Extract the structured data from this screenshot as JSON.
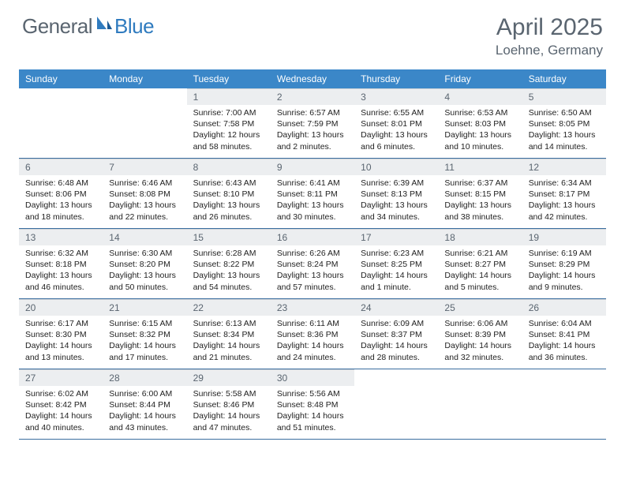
{
  "logo": {
    "general": "General",
    "blue": "Blue"
  },
  "title": "April 2025",
  "location": "Loehne, Germany",
  "colors": {
    "header_bg": "#3b87c8",
    "header_text": "#ffffff",
    "daynum_bg": "#eceef0",
    "daynum_text": "#5a6570",
    "body_text": "#222222",
    "title_text": "#5a6570",
    "week_border": "#3b6ea0",
    "logo_gray": "#5a6570",
    "logo_blue": "#2f7bbf"
  },
  "weekdays": [
    "Sunday",
    "Monday",
    "Tuesday",
    "Wednesday",
    "Thursday",
    "Friday",
    "Saturday"
  ],
  "weeks": [
    [
      {
        "empty": true
      },
      {
        "empty": true
      },
      {
        "num": "1",
        "sunrise": "Sunrise: 7:00 AM",
        "sunset": "Sunset: 7:58 PM",
        "daylight": "Daylight: 12 hours and 58 minutes."
      },
      {
        "num": "2",
        "sunrise": "Sunrise: 6:57 AM",
        "sunset": "Sunset: 7:59 PM",
        "daylight": "Daylight: 13 hours and 2 minutes."
      },
      {
        "num": "3",
        "sunrise": "Sunrise: 6:55 AM",
        "sunset": "Sunset: 8:01 PM",
        "daylight": "Daylight: 13 hours and 6 minutes."
      },
      {
        "num": "4",
        "sunrise": "Sunrise: 6:53 AM",
        "sunset": "Sunset: 8:03 PM",
        "daylight": "Daylight: 13 hours and 10 minutes."
      },
      {
        "num": "5",
        "sunrise": "Sunrise: 6:50 AM",
        "sunset": "Sunset: 8:05 PM",
        "daylight": "Daylight: 13 hours and 14 minutes."
      }
    ],
    [
      {
        "num": "6",
        "sunrise": "Sunrise: 6:48 AM",
        "sunset": "Sunset: 8:06 PM",
        "daylight": "Daylight: 13 hours and 18 minutes."
      },
      {
        "num": "7",
        "sunrise": "Sunrise: 6:46 AM",
        "sunset": "Sunset: 8:08 PM",
        "daylight": "Daylight: 13 hours and 22 minutes."
      },
      {
        "num": "8",
        "sunrise": "Sunrise: 6:43 AM",
        "sunset": "Sunset: 8:10 PM",
        "daylight": "Daylight: 13 hours and 26 minutes."
      },
      {
        "num": "9",
        "sunrise": "Sunrise: 6:41 AM",
        "sunset": "Sunset: 8:11 PM",
        "daylight": "Daylight: 13 hours and 30 minutes."
      },
      {
        "num": "10",
        "sunrise": "Sunrise: 6:39 AM",
        "sunset": "Sunset: 8:13 PM",
        "daylight": "Daylight: 13 hours and 34 minutes."
      },
      {
        "num": "11",
        "sunrise": "Sunrise: 6:37 AM",
        "sunset": "Sunset: 8:15 PM",
        "daylight": "Daylight: 13 hours and 38 minutes."
      },
      {
        "num": "12",
        "sunrise": "Sunrise: 6:34 AM",
        "sunset": "Sunset: 8:17 PM",
        "daylight": "Daylight: 13 hours and 42 minutes."
      }
    ],
    [
      {
        "num": "13",
        "sunrise": "Sunrise: 6:32 AM",
        "sunset": "Sunset: 8:18 PM",
        "daylight": "Daylight: 13 hours and 46 minutes."
      },
      {
        "num": "14",
        "sunrise": "Sunrise: 6:30 AM",
        "sunset": "Sunset: 8:20 PM",
        "daylight": "Daylight: 13 hours and 50 minutes."
      },
      {
        "num": "15",
        "sunrise": "Sunrise: 6:28 AM",
        "sunset": "Sunset: 8:22 PM",
        "daylight": "Daylight: 13 hours and 54 minutes."
      },
      {
        "num": "16",
        "sunrise": "Sunrise: 6:26 AM",
        "sunset": "Sunset: 8:24 PM",
        "daylight": "Daylight: 13 hours and 57 minutes."
      },
      {
        "num": "17",
        "sunrise": "Sunrise: 6:23 AM",
        "sunset": "Sunset: 8:25 PM",
        "daylight": "Daylight: 14 hours and 1 minute."
      },
      {
        "num": "18",
        "sunrise": "Sunrise: 6:21 AM",
        "sunset": "Sunset: 8:27 PM",
        "daylight": "Daylight: 14 hours and 5 minutes."
      },
      {
        "num": "19",
        "sunrise": "Sunrise: 6:19 AM",
        "sunset": "Sunset: 8:29 PM",
        "daylight": "Daylight: 14 hours and 9 minutes."
      }
    ],
    [
      {
        "num": "20",
        "sunrise": "Sunrise: 6:17 AM",
        "sunset": "Sunset: 8:30 PM",
        "daylight": "Daylight: 14 hours and 13 minutes."
      },
      {
        "num": "21",
        "sunrise": "Sunrise: 6:15 AM",
        "sunset": "Sunset: 8:32 PM",
        "daylight": "Daylight: 14 hours and 17 minutes."
      },
      {
        "num": "22",
        "sunrise": "Sunrise: 6:13 AM",
        "sunset": "Sunset: 8:34 PM",
        "daylight": "Daylight: 14 hours and 21 minutes."
      },
      {
        "num": "23",
        "sunrise": "Sunrise: 6:11 AM",
        "sunset": "Sunset: 8:36 PM",
        "daylight": "Daylight: 14 hours and 24 minutes."
      },
      {
        "num": "24",
        "sunrise": "Sunrise: 6:09 AM",
        "sunset": "Sunset: 8:37 PM",
        "daylight": "Daylight: 14 hours and 28 minutes."
      },
      {
        "num": "25",
        "sunrise": "Sunrise: 6:06 AM",
        "sunset": "Sunset: 8:39 PM",
        "daylight": "Daylight: 14 hours and 32 minutes."
      },
      {
        "num": "26",
        "sunrise": "Sunrise: 6:04 AM",
        "sunset": "Sunset: 8:41 PM",
        "daylight": "Daylight: 14 hours and 36 minutes."
      }
    ],
    [
      {
        "num": "27",
        "sunrise": "Sunrise: 6:02 AM",
        "sunset": "Sunset: 8:42 PM",
        "daylight": "Daylight: 14 hours and 40 minutes."
      },
      {
        "num": "28",
        "sunrise": "Sunrise: 6:00 AM",
        "sunset": "Sunset: 8:44 PM",
        "daylight": "Daylight: 14 hours and 43 minutes."
      },
      {
        "num": "29",
        "sunrise": "Sunrise: 5:58 AM",
        "sunset": "Sunset: 8:46 PM",
        "daylight": "Daylight: 14 hours and 47 minutes."
      },
      {
        "num": "30",
        "sunrise": "Sunrise: 5:56 AM",
        "sunset": "Sunset: 8:48 PM",
        "daylight": "Daylight: 14 hours and 51 minutes."
      },
      {
        "empty": true
      },
      {
        "empty": true
      },
      {
        "empty": true
      }
    ]
  ]
}
